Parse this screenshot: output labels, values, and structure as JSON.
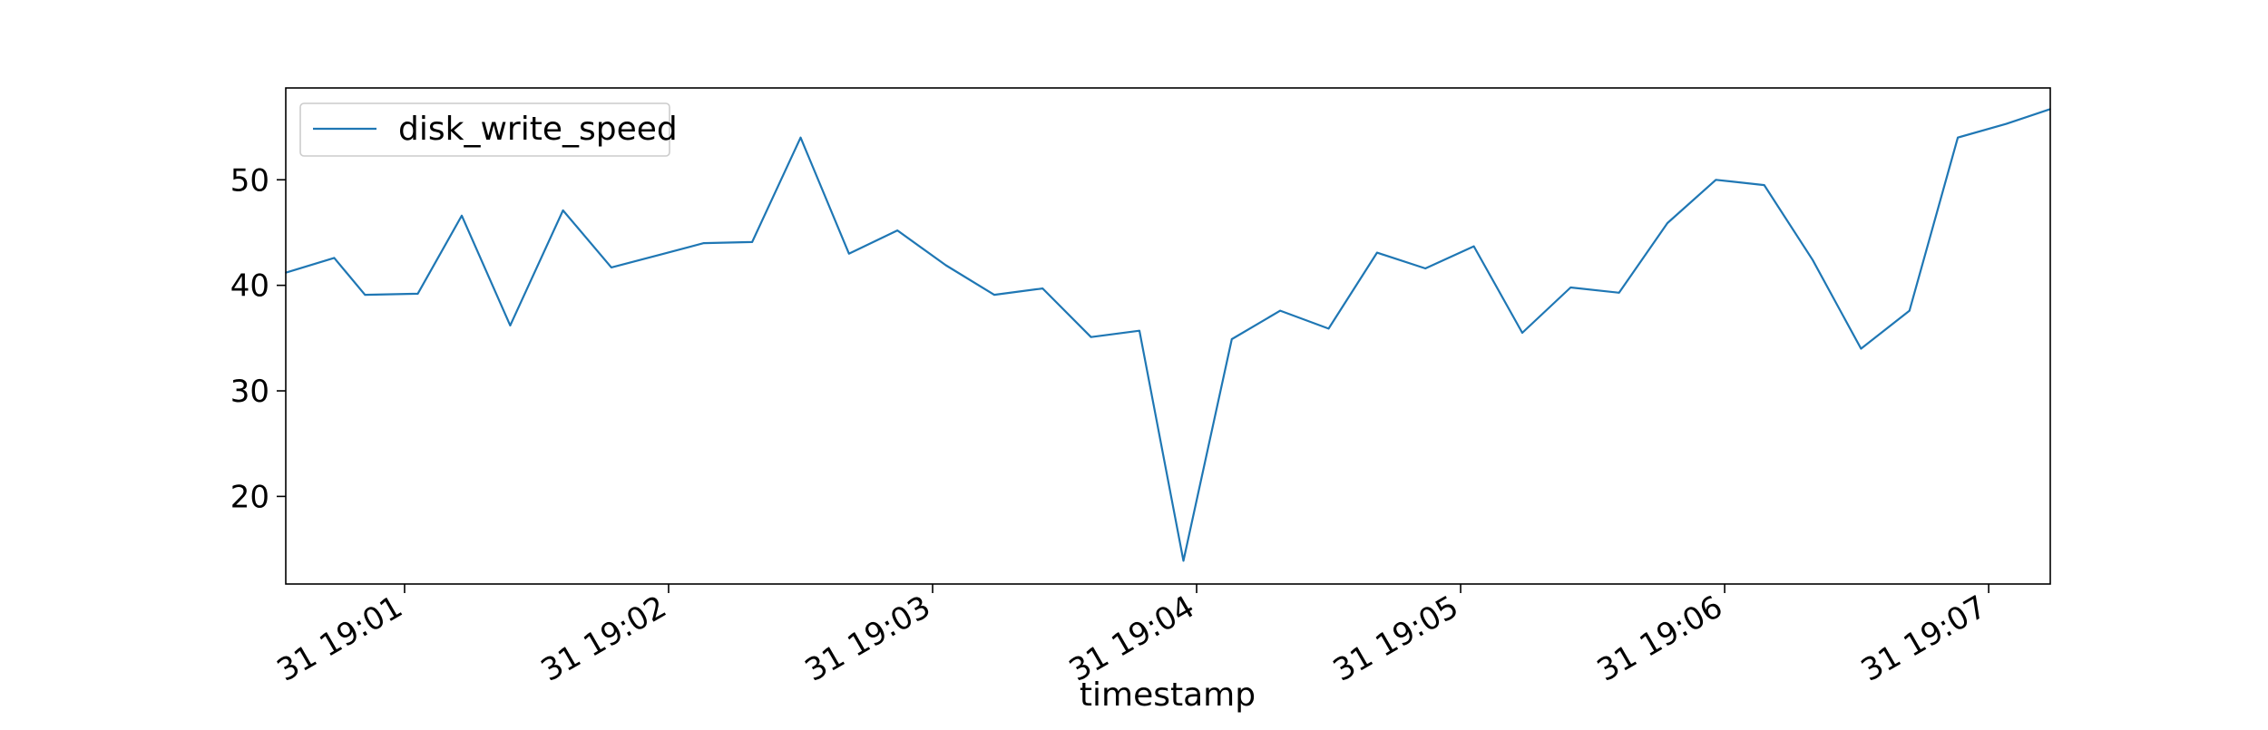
{
  "chart_data": {
    "type": "line",
    "title": "",
    "xlabel": "timestamp",
    "ylabel": "",
    "x_tick_labels": [
      "31 19:01",
      "31 19:02",
      "31 19:03",
      "31 19:04",
      "31 19:05",
      "31 19:06",
      "31 19:07"
    ],
    "y_ticks": [
      20,
      30,
      40,
      50
    ],
    "ylim": [
      11.7,
      58.7
    ],
    "xlim_seconds_after_19_00": [
      33,
      434
    ],
    "legend": {
      "placement": "upper-left",
      "entries": [
        "disk_write_speed"
      ]
    },
    "grid": false,
    "series": [
      {
        "name": "disk_write_speed",
        "color": "#1f77b4",
        "points": [
          {
            "t": "19:00:33",
            "y": 41.2
          },
          {
            "t": "19:00:44",
            "y": 42.6
          },
          {
            "t": "19:00:51",
            "y": 39.1
          },
          {
            "t": "19:01:03",
            "y": 39.2
          },
          {
            "t": "19:01:13",
            "y": 46.6
          },
          {
            "t": "19:01:24",
            "y": 36.2
          },
          {
            "t": "19:01:36",
            "y": 47.1
          },
          {
            "t": "19:01:47",
            "y": 41.7
          },
          {
            "t": "19:01:58",
            "y": 42.9
          },
          {
            "t": "19:02:08",
            "y": 44.0
          },
          {
            "t": "19:02:19",
            "y": 44.1
          },
          {
            "t": "19:02:30",
            "y": 54.0
          },
          {
            "t": "19:02:41",
            "y": 43.0
          },
          {
            "t": "19:02:52",
            "y": 45.2
          },
          {
            "t": "19:03:03",
            "y": 41.9
          },
          {
            "t": "19:03:14",
            "y": 39.1
          },
          {
            "t": "19:03:25",
            "y": 39.7
          },
          {
            "t": "19:03:36",
            "y": 35.1
          },
          {
            "t": "19:03:47",
            "y": 35.7
          },
          {
            "t": "19:03:57",
            "y": 13.9
          },
          {
            "t": "19:04:08",
            "y": 34.9
          },
          {
            "t": "19:04:19",
            "y": 37.6
          },
          {
            "t": "19:04:30",
            "y": 35.9
          },
          {
            "t": "19:04:41",
            "y": 43.1
          },
          {
            "t": "19:04:52",
            "y": 41.6
          },
          {
            "t": "19:05:03",
            "y": 43.7
          },
          {
            "t": "19:05:14",
            "y": 35.5
          },
          {
            "t": "19:05:25",
            "y": 39.8
          },
          {
            "t": "19:05:36",
            "y": 39.3
          },
          {
            "t": "19:05:47",
            "y": 45.9
          },
          {
            "t": "19:05:58",
            "y": 50.0
          },
          {
            "t": "19:06:09",
            "y": 49.5
          },
          {
            "t": "19:06:20",
            "y": 42.4
          },
          {
            "t": "19:06:31",
            "y": 34.0
          },
          {
            "t": "19:06:42",
            "y": 37.6
          },
          {
            "t": "19:06:53",
            "y": 54.0
          },
          {
            "t": "19:07:04",
            "y": 55.3
          },
          {
            "t": "19:07:14",
            "y": 56.7
          }
        ]
      }
    ]
  }
}
